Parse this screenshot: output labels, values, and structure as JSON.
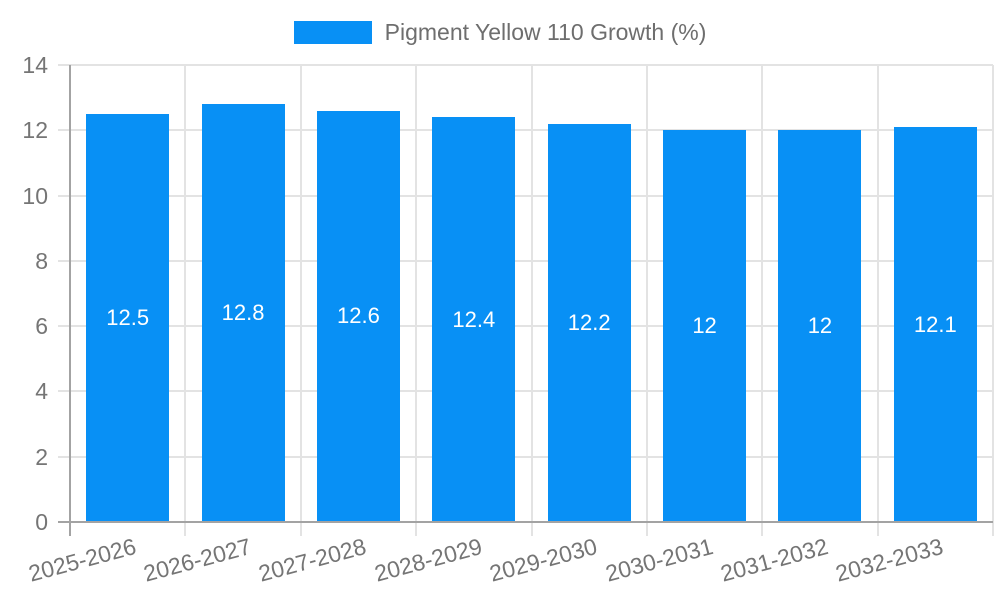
{
  "chart_data": {
    "type": "bar",
    "title": "",
    "legend": "Pigment Yellow 110 Growth (%)",
    "legend_position": "top",
    "categories": [
      "2025-2026",
      "2026-2027",
      "2027-2028",
      "2028-2029",
      "2029-2030",
      "2030-2031",
      "2031-2032",
      "2032-2033"
    ],
    "series": [
      {
        "name": "Pigment Yellow 110 Growth (%)",
        "values": [
          12.5,
          12.8,
          12.6,
          12.4,
          12.2,
          12,
          12,
          12.1
        ],
        "value_labels": [
          "12.5",
          "12.8",
          "12.6",
          "12.4",
          "12.2",
          "12",
          "12",
          "12.1"
        ]
      }
    ],
    "xlabel": "",
    "ylabel": "",
    "ylim": [
      0,
      14
    ],
    "yticks": [
      0,
      2,
      4,
      6,
      8,
      10,
      12,
      14
    ],
    "grid": true,
    "colors": {
      "bar": "#0890f5",
      "grid": "#e3e3e3",
      "axis": "#a3a3a3",
      "tick_label": "#757575",
      "legend_text": "#6e6e6e",
      "value_label": "#ffffff",
      "background": "#ffffff"
    }
  }
}
